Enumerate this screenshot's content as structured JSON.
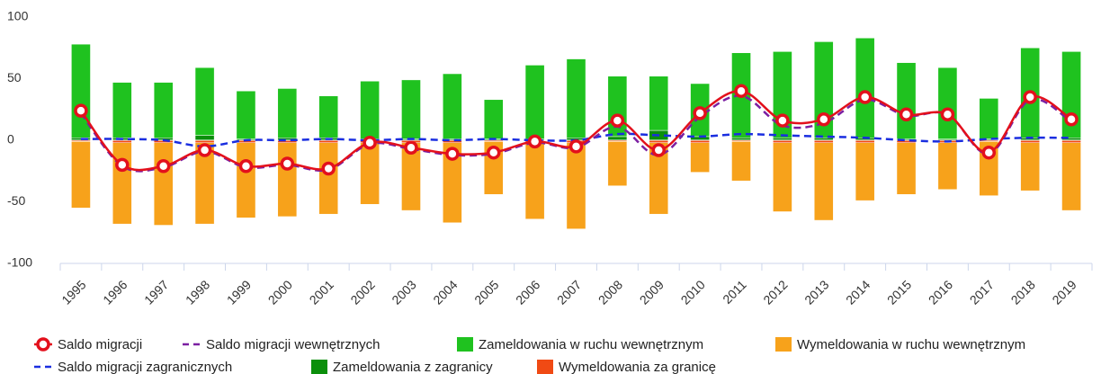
{
  "chart_data": {
    "type": "combo",
    "categories": [
      "1995",
      "1996",
      "1997",
      "1998",
      "1999",
      "2000",
      "2001",
      "2002",
      "2003",
      "2004",
      "2005",
      "2006",
      "2007",
      "2008",
      "2009",
      "2010",
      "2011",
      "2012",
      "2013",
      "2014",
      "2015",
      "2016",
      "2017",
      "2018",
      "2019"
    ],
    "ylim": [
      -100,
      100
    ],
    "yticks": [
      -100,
      -50,
      0,
      50,
      100
    ],
    "grid": false,
    "legend": "bottom",
    "series": [
      {
        "name": "Saldo migracji",
        "type": "line",
        "style": "solid-markers",
        "color": "#e3101c",
        "values": [
          24,
          -20,
          -21,
          -8,
          -21,
          -19,
          -23,
          -2,
          -6,
          -11,
          -10,
          -1,
          -5,
          16,
          -8,
          22,
          40,
          16,
          17,
          35,
          21,
          21,
          -10,
          35,
          17
        ]
      },
      {
        "name": "Saldo migracji wewnętrznych",
        "type": "line",
        "style": "dashed",
        "color": "#7b1fa2",
        "values": [
          22,
          -21,
          -22,
          -9,
          -22,
          -20,
          -24,
          -3,
          -7,
          -12,
          -11,
          -2,
          -6,
          11,
          -12,
          19,
          36,
          12,
          14,
          33,
          20,
          21,
          -11,
          33,
          15
        ]
      },
      {
        "name": "Zameldowania w ruchu wewnętrznym",
        "type": "bar",
        "color": "#1fc21f",
        "values": [
          76,
          45,
          45,
          55,
          39,
          40,
          34,
          47,
          48,
          53,
          32,
          60,
          64,
          49,
          44,
          43,
          69,
          70,
          78,
          81,
          62,
          58,
          33,
          73,
          70
        ]
      },
      {
        "name": "Wymeldowania w ruchu wewnętrznym",
        "type": "bar",
        "color": "#f7a21b",
        "values": [
          -54,
          -66,
          -67,
          -66,
          -61,
          -60,
          -58,
          -50,
          -55,
          -65,
          -43,
          -62,
          -70,
          -36,
          -58,
          -24,
          -32,
          -56,
          -63,
          -47,
          -42,
          -38,
          -44,
          -39,
          -55
        ]
      },
      {
        "name": "Saldo migracji zagranicznych",
        "type": "line",
        "style": "dashed",
        "color": "#1a2ee0",
        "values": [
          1,
          1,
          0,
          -5,
          0,
          0,
          1,
          0,
          1,
          0,
          1,
          0,
          0,
          5,
          4,
          3,
          5,
          4,
          3,
          2,
          0,
          -1,
          1,
          2,
          2
        ]
      },
      {
        "name": "Zameldowania z zagranicy",
        "type": "bar",
        "color": "#0b8f0b",
        "values": [
          2,
          2,
          2,
          4,
          1,
          2,
          2,
          1,
          1,
          1,
          1,
          1,
          2,
          3,
          8,
          3,
          2,
          2,
          2,
          2,
          1,
          1,
          1,
          2,
          2
        ]
      },
      {
        "name": "Wymeldowania za granicę",
        "type": "bar",
        "color": "#f04a14",
        "values": [
          -1,
          -2,
          -2,
          -2,
          -2,
          -2,
          -2,
          -2,
          -2,
          -2,
          -1,
          -2,
          -2,
          -1,
          -2,
          -2,
          -1,
          -2,
          -2,
          -2,
          -2,
          -2,
          -1,
          -2,
          -2
        ]
      }
    ]
  }
}
